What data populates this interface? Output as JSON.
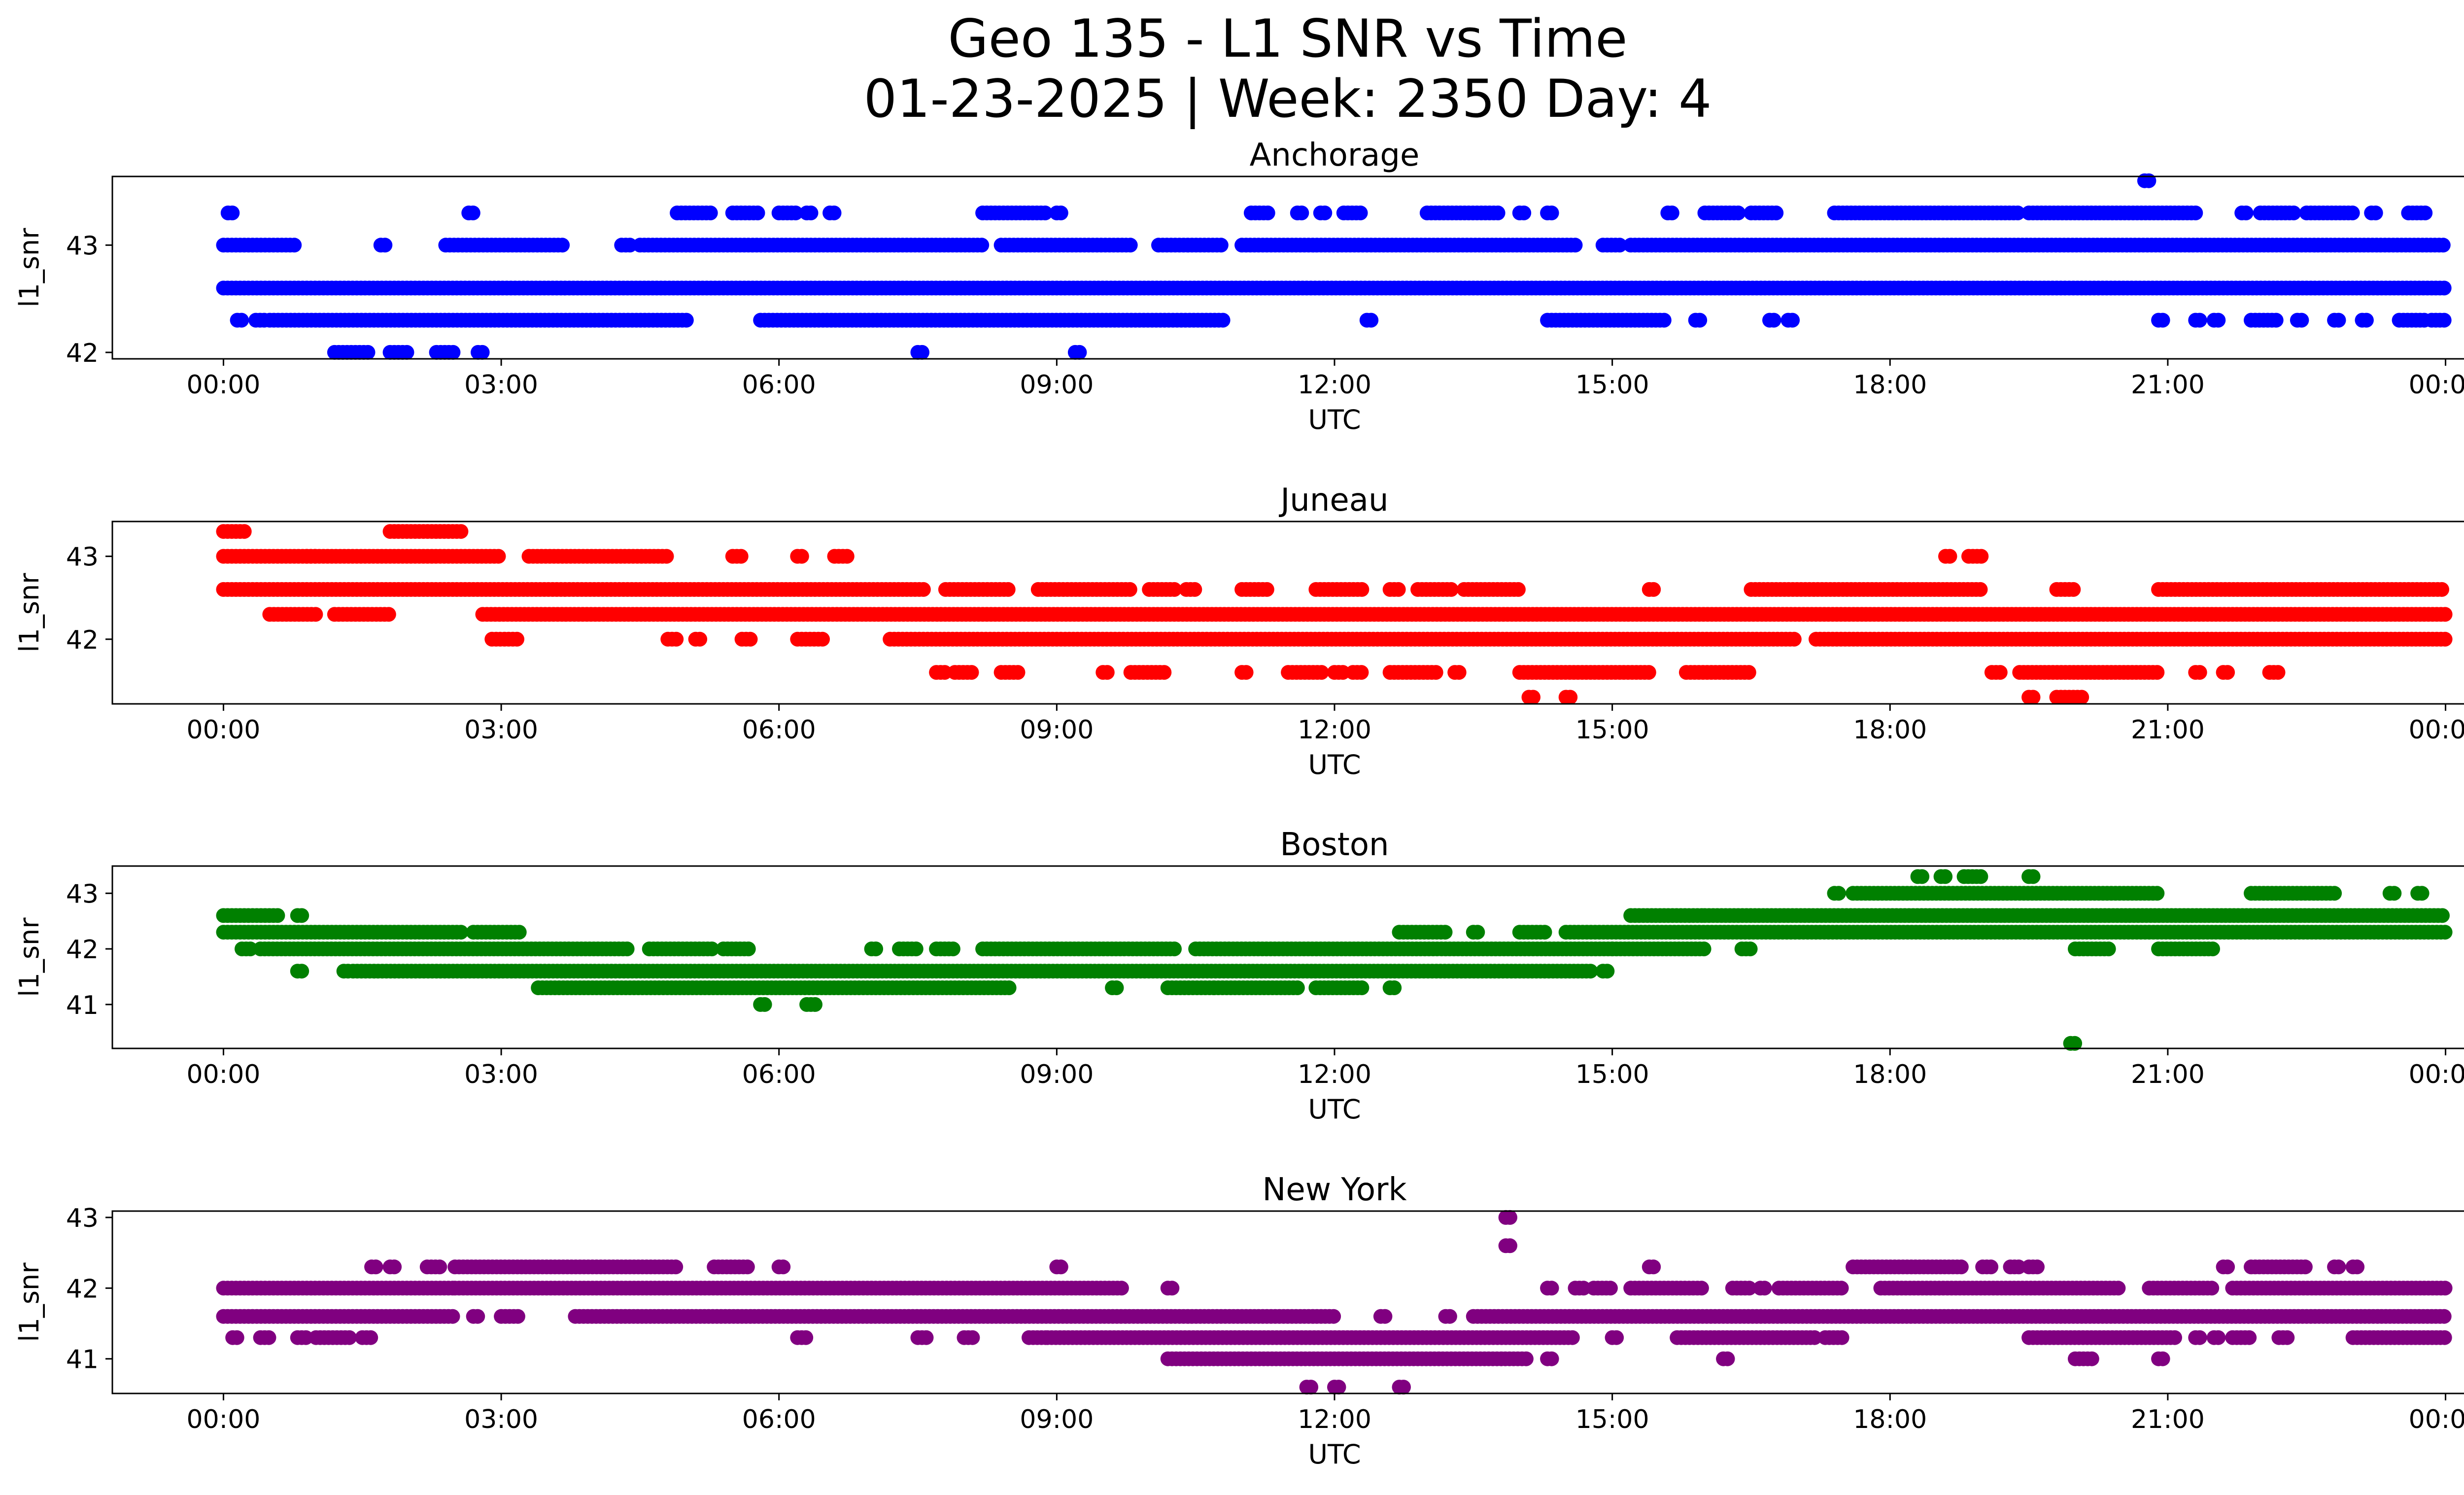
{
  "title_line1": "Geo 135 - L1 SNR vs Time",
  "title_line2": "01-23-2025 | Week: 2350 Day: 4",
  "chart_data": [
    {
      "type": "scatter",
      "title": "Anchorage",
      "xlabel": "UTC",
      "ylabel": "l1_snr",
      "color": "#0000ff",
      "xlim": [
        -1.2,
        25.2
      ],
      "ylim": [
        41.94,
        43.64
      ],
      "xticks": [
        "00:00",
        "03:00",
        "06:00",
        "09:00",
        "12:00",
        "15:00",
        "18:00",
        "21:00",
        "00:00"
      ],
      "yticks": [
        42,
        43
      ],
      "bands": [
        {
          "y": 42.6,
          "segments": [
            [
              0.0,
              24.0
            ]
          ]
        },
        {
          "y": 43.0,
          "segments": [
            [
              0.0,
              0.8
            ],
            [
              1.7,
              1.75
            ],
            [
              2.4,
              3.7
            ],
            [
              4.3,
              4.4
            ],
            [
              4.5,
              8.2
            ],
            [
              8.4,
              9.8
            ],
            [
              10.1,
              10.8
            ],
            [
              11.0,
              14.6
            ],
            [
              14.9,
              15.1
            ],
            [
              15.2,
              24.0
            ]
          ]
        },
        {
          "y": 42.3,
          "segments": [
            [
              0.15,
              0.2
            ],
            [
              0.35,
              0.45
            ],
            [
              0.5,
              5.0
            ],
            [
              5.8,
              10.8
            ],
            [
              12.35,
              12.4
            ],
            [
              14.3,
              15.6
            ],
            [
              15.9,
              15.95
            ],
            [
              16.7,
              16.75
            ],
            [
              16.9,
              16.95
            ],
            [
              20.9,
              20.95
            ],
            [
              21.3,
              21.35
            ],
            [
              21.5,
              21.55
            ],
            [
              21.9,
              22.2
            ],
            [
              22.4,
              22.45
            ],
            [
              22.8,
              22.85
            ],
            [
              23.1,
              23.15
            ],
            [
              23.5,
              23.8
            ],
            [
              23.85,
              24.0
            ]
          ]
        },
        {
          "y": 43.3,
          "segments": [
            [
              0.05,
              0.1
            ],
            [
              2.65,
              2.7
            ],
            [
              4.9,
              5.3
            ],
            [
              5.5,
              5.8
            ],
            [
              6.0,
              6.2
            ],
            [
              6.3,
              6.35
            ],
            [
              6.55,
              6.6
            ],
            [
              8.2,
              8.9
            ],
            [
              9.0,
              9.05
            ],
            [
              11.1,
              11.3
            ],
            [
              11.6,
              11.65
            ],
            [
              11.85,
              11.9
            ],
            [
              12.1,
              12.3
            ],
            [
              13.0,
              13.8
            ],
            [
              14.0,
              14.05
            ],
            [
              14.3,
              14.35
            ],
            [
              15.6,
              15.65
            ],
            [
              16.0,
              16.4
            ],
            [
              16.5,
              16.8
            ],
            [
              17.4,
              19.4
            ],
            [
              19.5,
              21.3
            ],
            [
              21.8,
              21.85
            ],
            [
              22.0,
              22.4
            ],
            [
              22.5,
              23.0
            ],
            [
              23.2,
              23.25
            ],
            [
              23.6,
              23.8
            ]
          ]
        },
        {
          "y": 42.0,
          "segments": [
            [
              1.2,
              1.6
            ],
            [
              1.8,
              2.0
            ],
            [
              2.3,
              2.5
            ],
            [
              2.75,
              2.8
            ],
            [
              7.5,
              7.55
            ],
            [
              9.2,
              9.25
            ]
          ]
        },
        {
          "y": 43.6,
          "segments": [
            [
              20.75,
              20.8
            ]
          ]
        }
      ]
    },
    {
      "type": "scatter",
      "title": "Juneau",
      "xlabel": "UTC",
      "ylabel": "l1_snr",
      "color": "#ff0000",
      "xlim": [
        -1.2,
        25.2
      ],
      "ylim": [
        41.22,
        43.42
      ],
      "xticks": [
        "00:00",
        "03:00",
        "06:00",
        "09:00",
        "12:00",
        "15:00",
        "18:00",
        "21:00",
        "00:00"
      ],
      "yticks": [
        42,
        43
      ],
      "bands": [
        {
          "y": 43.3,
          "segments": [
            [
              0.0,
              0.25
            ],
            [
              1.8,
              2.6
            ]
          ]
        },
        {
          "y": 43.0,
          "segments": [
            [
              0.0,
              1.0
            ],
            [
              0.9,
              3.0
            ],
            [
              3.3,
              4.8
            ],
            [
              5.5,
              5.6
            ],
            [
              6.2,
              6.25
            ],
            [
              6.6,
              6.75
            ],
            [
              18.6,
              18.65
            ],
            [
              18.85,
              19.0
            ]
          ]
        },
        {
          "y": 42.6,
          "segments": [
            [
              0.0,
              7.6
            ],
            [
              7.8,
              8.5
            ],
            [
              8.8,
              9.8
            ],
            [
              10.0,
              10.3
            ],
            [
              10.4,
              10.5
            ],
            [
              11.0,
              11.3
            ],
            [
              11.8,
              12.3
            ],
            [
              12.6,
              12.7
            ],
            [
              12.9,
              13.3
            ],
            [
              13.4,
              14.0
            ],
            [
              15.4,
              15.45
            ],
            [
              16.5,
              19.0
            ],
            [
              19.8,
              20.0
            ],
            [
              20.9,
              24.0
            ]
          ]
        },
        {
          "y": 42.3,
          "segments": [
            [
              0.5,
              1.0
            ],
            [
              1.2,
              1.8
            ],
            [
              2.8,
              24.0
            ]
          ]
        },
        {
          "y": 42.0,
          "segments": [
            [
              2.9,
              3.2
            ],
            [
              4.8,
              4.9
            ],
            [
              5.1,
              5.15
            ],
            [
              5.6,
              5.7
            ],
            [
              6.2,
              6.5
            ],
            [
              7.2,
              17.0
            ],
            [
              17.2,
              24.0
            ]
          ]
        },
        {
          "y": 41.6,
          "segments": [
            [
              7.7,
              7.8
            ],
            [
              7.9,
              8.1
            ],
            [
              8.4,
              8.6
            ],
            [
              9.5,
              9.55
            ],
            [
              9.8,
              10.2
            ],
            [
              11.0,
              11.05
            ],
            [
              11.5,
              11.9
            ],
            [
              12.0,
              12.1
            ],
            [
              12.2,
              12.3
            ],
            [
              12.6,
              13.1
            ],
            [
              13.3,
              13.35
            ],
            [
              14.0,
              15.4
            ],
            [
              15.8,
              16.5
            ],
            [
              19.1,
              19.2
            ],
            [
              19.4,
              20.9
            ],
            [
              21.3,
              21.35
            ],
            [
              21.6,
              21.65
            ],
            [
              22.1,
              22.2
            ]
          ]
        },
        {
          "y": 41.3,
          "segments": [
            [
              14.1,
              14.15
            ],
            [
              14.5,
              14.55
            ],
            [
              19.5,
              19.55
            ],
            [
              19.8,
              20.1
            ]
          ]
        }
      ]
    },
    {
      "type": "scatter",
      "title": "Boston",
      "xlabel": "UTC",
      "ylabel": "l1_snr",
      "color": "#008000",
      "xlim": [
        -1.2,
        25.2
      ],
      "ylim": [
        40.21,
        43.49
      ],
      "xticks": [
        "00:00",
        "03:00",
        "06:00",
        "09:00",
        "12:00",
        "15:00",
        "18:00",
        "21:00",
        "00:00"
      ],
      "yticks": [
        41,
        42,
        43
      ],
      "bands": [
        {
          "y": 42.6,
          "segments": [
            [
              0.0,
              0.6
            ],
            [
              0.8,
              0.85
            ],
            [
              15.2,
              16.0
            ],
            [
              16.0,
              24.0
            ]
          ]
        },
        {
          "y": 42.3,
          "segments": [
            [
              0.0,
              2.6
            ],
            [
              2.7,
              3.2
            ],
            [
              12.7,
              13.2
            ],
            [
              13.5,
              13.55
            ],
            [
              14.0,
              14.3
            ],
            [
              14.5,
              24.0
            ]
          ]
        },
        {
          "y": 42.0,
          "segments": [
            [
              0.2,
              0.3
            ],
            [
              0.4,
              4.4
            ],
            [
              4.6,
              5.3
            ],
            [
              5.4,
              5.7
            ],
            [
              7.0,
              7.05
            ],
            [
              7.3,
              7.5
            ],
            [
              7.7,
              7.9
            ],
            [
              8.2,
              10.3
            ],
            [
              10.5,
              15.0
            ],
            [
              15.0,
              16.0
            ],
            [
              16.4,
              16.5
            ],
            [
              20.0,
              20.4
            ],
            [
              20.9,
              21.5
            ]
          ]
        },
        {
          "y": 41.6,
          "segments": [
            [
              0.8,
              0.85
            ],
            [
              1.3,
              1.35
            ],
            [
              1.4,
              14.8
            ],
            [
              14.9,
              14.95
            ]
          ]
        },
        {
          "y": 41.3,
          "segments": [
            [
              3.4,
              8.5
            ],
            [
              9.6,
              9.65
            ],
            [
              10.2,
              10.7
            ],
            [
              10.7,
              11.6
            ],
            [
              11.8,
              12.3
            ],
            [
              12.6,
              12.65
            ]
          ]
        },
        {
          "y": 41.0,
          "segments": [
            [
              5.8,
              5.85
            ],
            [
              6.3,
              6.4
            ]
          ]
        },
        {
          "y": 43.0,
          "segments": [
            [
              17.4,
              17.45
            ],
            [
              17.6,
              20.9
            ],
            [
              21.9,
              22.8
            ],
            [
              23.4,
              23.45
            ],
            [
              23.7,
              23.75
            ]
          ]
        },
        {
          "y": 43.3,
          "segments": [
            [
              18.3,
              18.35
            ],
            [
              18.55,
              18.6
            ],
            [
              18.8,
              19.0
            ],
            [
              19.5,
              19.55
            ]
          ]
        },
        {
          "y": 40.3,
          "segments": [
            [
              19.95,
              20.0
            ]
          ]
        }
      ]
    },
    {
      "type": "scatter",
      "title": "New York",
      "xlabel": "UTC",
      "ylabel": "l1_snr",
      "color": "#800080",
      "xlim": [
        -1.2,
        25.2
      ],
      "ylim": [
        40.51,
        43.09
      ],
      "xticks": [
        "00:00",
        "03:00",
        "06:00",
        "09:00",
        "12:00",
        "15:00",
        "18:00",
        "21:00",
        "00:00"
      ],
      "yticks": [
        41,
        42,
        43
      ],
      "bands": [
        {
          "y": 42.0,
          "segments": [
            [
              0.0,
              2.5
            ],
            [
              2.5,
              9.7
            ],
            [
              10.2,
              10.25
            ],
            [
              14.3,
              14.35
            ],
            [
              14.6,
              14.7
            ],
            [
              14.8,
              15.0
            ],
            [
              15.2,
              16.0
            ],
            [
              16.3,
              16.5
            ],
            [
              16.6,
              16.65
            ],
            [
              16.8,
              17.5
            ],
            [
              17.9,
              20.5
            ],
            [
              20.8,
              21.5
            ],
            [
              21.7,
              24.0
            ]
          ]
        },
        {
          "y": 41.6,
          "segments": [
            [
              0.0,
              2.5
            ],
            [
              2.7,
              2.75
            ],
            [
              3.0,
              3.2
            ],
            [
              3.8,
              12.0
            ],
            [
              12.5,
              12.55
            ],
            [
              13.2,
              13.25
            ],
            [
              13.5,
              24.0
            ]
          ]
        },
        {
          "y": 41.3,
          "segments": [
            [
              0.1,
              0.15
            ],
            [
              0.4,
              0.5
            ],
            [
              0.8,
              0.9
            ],
            [
              1.0,
              1.4
            ],
            [
              1.5,
              1.6
            ],
            [
              6.2,
              6.3
            ],
            [
              7.5,
              7.6
            ],
            [
              8.0,
              8.1
            ],
            [
              8.7,
              8.9
            ],
            [
              8.9,
              14.6
            ],
            [
              15.0,
              15.05
            ],
            [
              15.7,
              17.2
            ],
            [
              17.3,
              17.5
            ],
            [
              19.5,
              21.1
            ],
            [
              21.3,
              21.35
            ],
            [
              21.5,
              21.55
            ],
            [
              21.7,
              21.9
            ],
            [
              22.2,
              22.3
            ],
            [
              23.0,
              24.0
            ]
          ]
        },
        {
          "y": 42.3,
          "segments": [
            [
              1.6,
              1.65
            ],
            [
              1.8,
              1.85
            ],
            [
              2.2,
              2.35
            ],
            [
              2.5,
              4.9
            ],
            [
              5.3,
              5.7
            ],
            [
              6.0,
              6.05
            ],
            [
              9.0,
              9.05
            ],
            [
              15.4,
              15.45
            ],
            [
              17.6,
              18.8
            ],
            [
              19.0,
              19.1
            ],
            [
              19.3,
              19.4
            ],
            [
              19.5,
              19.6
            ],
            [
              21.6,
              21.65
            ],
            [
              21.9,
              22.5
            ],
            [
              22.8,
              22.85
            ],
            [
              23.0,
              23.05
            ]
          ]
        },
        {
          "y": 41.0,
          "segments": [
            [
              10.2,
              14.1
            ],
            [
              14.3,
              14.35
            ],
            [
              16.2,
              16.25
            ],
            [
              20.0,
              20.2
            ],
            [
              20.9,
              20.95
            ]
          ]
        },
        {
          "y": 40.6,
          "segments": [
            [
              11.7,
              11.75
            ],
            [
              12.0,
              12.05
            ],
            [
              12.7,
              12.75
            ]
          ]
        },
        {
          "y": 42.6,
          "segments": [
            [
              13.85,
              13.9
            ]
          ]
        },
        {
          "y": 43.0,
          "segments": [
            [
              13.85,
              13.9
            ]
          ]
        }
      ]
    }
  ]
}
